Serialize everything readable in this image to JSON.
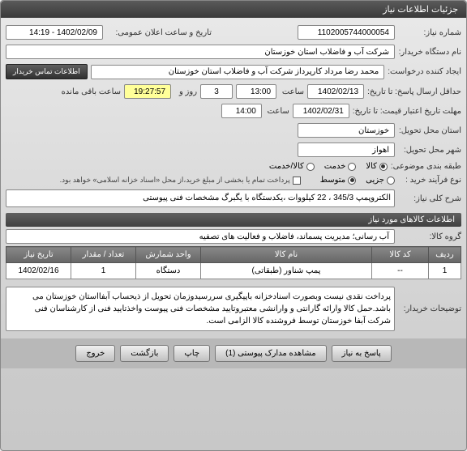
{
  "window": {
    "title": "جزئیات اطلاعات نیاز"
  },
  "fields": {
    "request_num_lbl": "شماره نیاز:",
    "request_num": "1102005744000054",
    "announce_date_lbl": "تاریخ و ساعت اعلان عمومی:",
    "announce_date": "1402/02/09 - 14:19",
    "buyer_device_lbl": "نام دستگاه خریدار:",
    "buyer_device": "شرکت آب و فاضلاب استان خوزستان",
    "creator_lbl": "ایجاد کننده درخواست:",
    "creator": "محمد رضا مرداد کارپرداز شرکت آب و فاضلاب استان خوزستان",
    "contact_btn": "اطلاعات تماس خریدار",
    "deadline_lbl": "حداقل ارسال پاسخ: تا تاریخ:",
    "deadline_date": "1402/02/13",
    "time_lbl": "ساعت",
    "deadline_time": "13:00",
    "days": "3",
    "days_unit_lbl": "روز و",
    "remaining_time": "19:27:57",
    "remaining_lbl": "ساعت باقی مانده",
    "validity_lbl": "مهلت تاریخ اعتبار قیمت: تا تاریخ:",
    "validity_date": "1402/02/31",
    "validity_time": "14:00",
    "province_lbl": "استان محل تحویل:",
    "province": "خوزستان",
    "city_lbl": "شهر محل تحویل:",
    "city": "اهواز",
    "category_lbl": "طبقه بندی موضوعی:",
    "cat_goods": "کالا",
    "cat_service": "خدمت",
    "cat_both": "کالا/خدمت",
    "buy_type_lbl": "نوع فرآیند خرید :",
    "buy_type_partial": "جزیی",
    "buy_type_medium": "متوسط",
    "payment_note": "پرداخت تمام یا بخشی از مبلغ خرید،از محل «اسناد خزانه اسلامی» خواهد بود.",
    "need_title_lbl": "شرح کلی نیاز:",
    "need_title": "الکتروپمپ 345/3 ، 22 کیلووات ،یکدستگاه با یگبرگ مشخصات فنی پیوستی"
  },
  "section2": {
    "title": "اطلاعات کالاهای مورد نیاز",
    "group_lbl": "گروه کالا:",
    "group": "آب رسانی؛ مدیریت پسماند، فاضلاب و فعالیت های تصفیه"
  },
  "table": {
    "headers": {
      "row": "ردیف",
      "code": "کد کالا",
      "name": "نام کالا",
      "unit": "واحد شمارش",
      "qty": "تعداد / مقدار",
      "date": "تاریخ نیاز"
    },
    "rows": [
      {
        "row": "1",
        "code": "--",
        "name": "پمپ شناور (طبقاتی)",
        "unit": "دستگاه",
        "qty": "1",
        "date": "1402/02/16"
      }
    ]
  },
  "buyer_note_lbl": "توضیحات خریدار:",
  "buyer_note": "پرداخت نقدی نیست وبصورت اسنادخزانه باپیگیری سررسیدوزمان تحویل از ذیحساب آبفااستان خوزستان می باشد.حمل کالا وارائه گارانتی و وارانشی معتبروتایید مشخصات فنی پیوست واخذتایید فنی از کارشناسان فنی شرکت آبفا خوزستان توسط فروشنده کالا الزامی است.",
  "footer": {
    "respond": "پاسخ به نیاز",
    "attachments": "مشاهده مدارک پیوستی (1)",
    "print": "چاپ",
    "back": "بازگشت",
    "exit": "خروج"
  },
  "colors": {
    "yellow": "#ffff99",
    "header": "#4a4a4a"
  }
}
